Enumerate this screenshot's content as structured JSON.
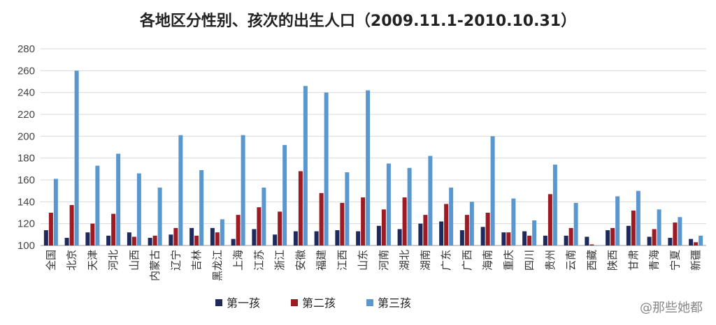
{
  "chart_data": {
    "type": "bar",
    "title": "各地区分性别、孩次的出生人口（2009.11.1-2010.10.31）",
    "ylim": [
      100,
      280
    ],
    "yticks": [
      100,
      120,
      140,
      160,
      180,
      200,
      220,
      240,
      260,
      280
    ],
    "grid": true,
    "legend_position": "bottom-center",
    "categories": [
      "全国",
      "北京",
      "天津",
      "河北",
      "山西",
      "内蒙古",
      "辽宁",
      "吉林",
      "黑龙江",
      "上海",
      "江苏",
      "浙江",
      "安徽",
      "福建",
      "江西",
      "山东",
      "河南",
      "湖北",
      "湖南",
      "广东",
      "广西",
      "海南",
      "重庆",
      "四川",
      "贵州",
      "云南",
      "西藏",
      "陕西",
      "甘肃",
      "青海",
      "宁夏",
      "新疆"
    ],
    "series": [
      {
        "name": "第一孩",
        "color": "#1f2a5c",
        "values": [
          114,
          107,
          112,
          109,
          112,
          107,
          110,
          116,
          116,
          106,
          115,
          110,
          113,
          113,
          114,
          113,
          118,
          115,
          120,
          122,
          114,
          117,
          112,
          113,
          109,
          109,
          108,
          114,
          118,
          108,
          107,
          106
        ]
      },
      {
        "name": "第二孩",
        "color": "#9e1b24",
        "values": [
          130,
          137,
          120,
          129,
          108,
          109,
          116,
          109,
          112,
          128,
          135,
          131,
          168,
          148,
          139,
          144,
          133,
          144,
          128,
          138,
          128,
          130,
          112,
          109,
          147,
          116,
          101,
          116,
          132,
          115,
          121,
          103
        ]
      },
      {
        "name": "第三孩",
        "color": "#5b97cf",
        "values": [
          161,
          260,
          173,
          184,
          166,
          153,
          201,
          169,
          124,
          201,
          153,
          192,
          246,
          240,
          167,
          242,
          175,
          171,
          182,
          153,
          140,
          200,
          143,
          123,
          174,
          139,
          100,
          145,
          150,
          133,
          126,
          109
        ]
      }
    ]
  },
  "watermark": "@那些她都"
}
